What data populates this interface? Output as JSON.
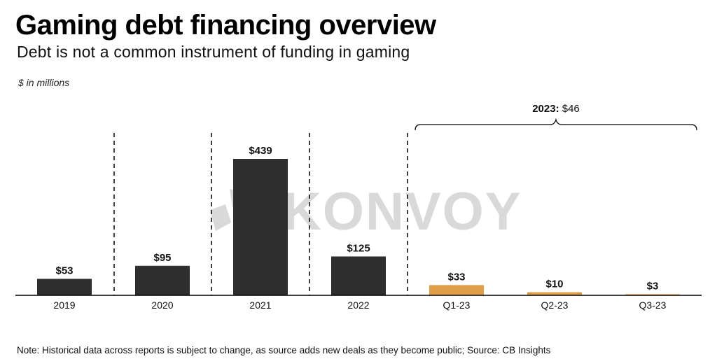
{
  "title": "Gaming debt financing overview",
  "subtitle": "Debt is not a common instrument of funding in gaming",
  "unit_label": "$ in millions",
  "footnote": "Note: Historical data across reports is subject to change, as source adds new deals as they become public; Source: CB Insights",
  "watermark": "KONVOY",
  "bracket": {
    "label_bold": "2023:",
    "label_value": "$46"
  },
  "colors": {
    "annual": "#2e2e2e",
    "quarterly": "#e0a04a",
    "watermark": "#d9d9d9"
  },
  "chart_data": {
    "type": "bar",
    "categories": [
      "2019",
      "2020",
      "2021",
      "2022",
      "Q1-23",
      "Q2-23",
      "Q3-23"
    ],
    "values": [
      53,
      95,
      439,
      125,
      33,
      10,
      3
    ],
    "data_labels": [
      "$53",
      "$95",
      "$439",
      "$125",
      "$33",
      "$10",
      "$3"
    ],
    "groups": [
      "annual",
      "annual",
      "annual",
      "annual",
      "quarterly",
      "quarterly",
      "quarterly"
    ],
    "ylim": [
      0,
      439
    ],
    "grid": false,
    "legend": "none"
  }
}
